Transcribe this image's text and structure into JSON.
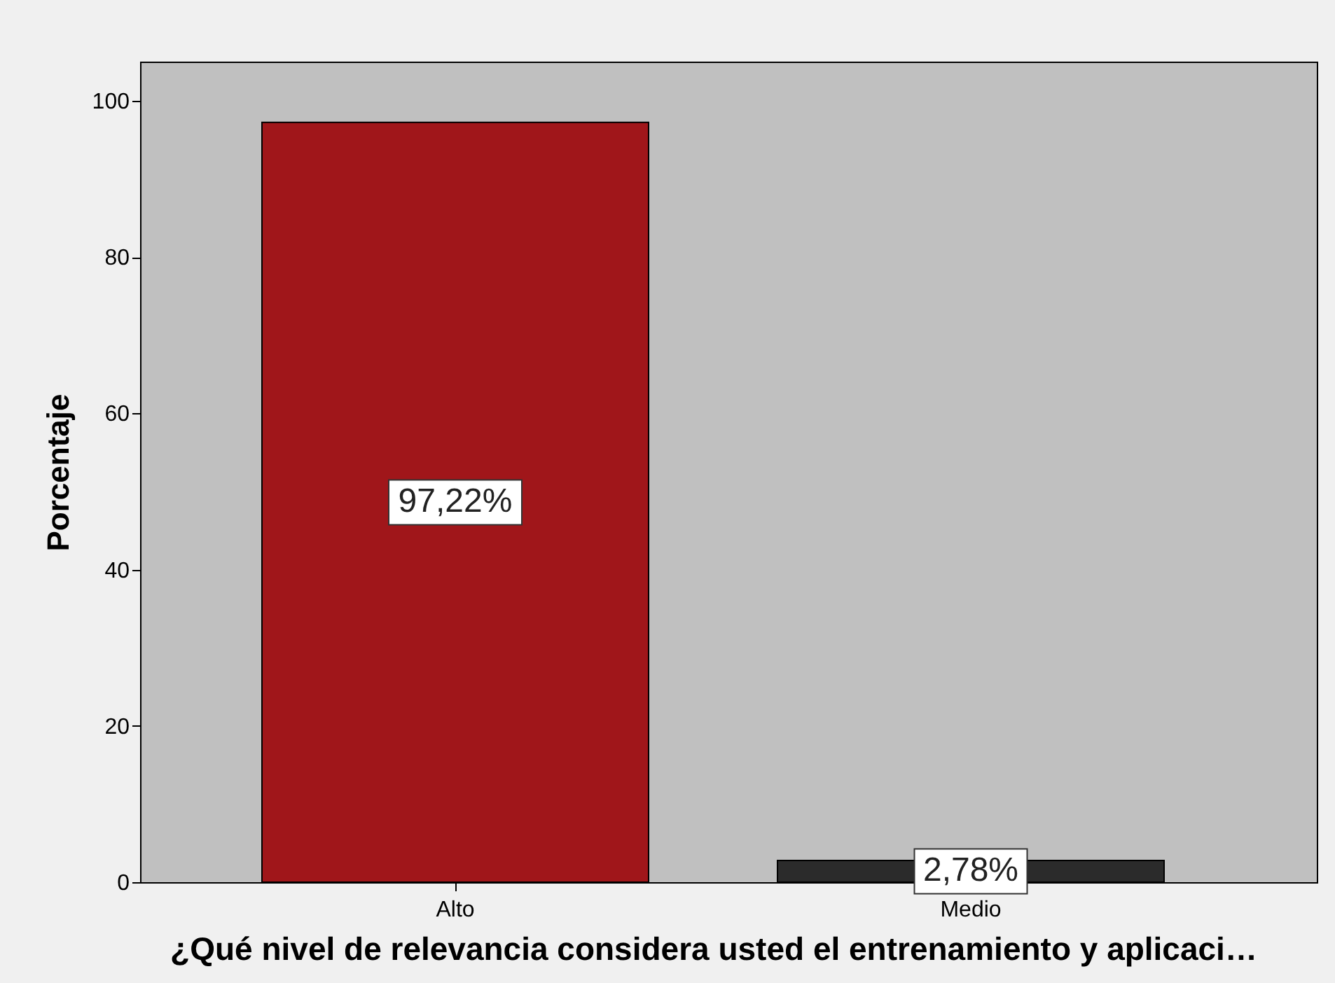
{
  "chart_data": {
    "type": "bar",
    "xlabel": "¿Qué nivel de relevancia considera usted el entrenamiento y aplicaci…",
    "ylabel": "Porcentaje",
    "categories": [
      "Alto",
      "Medio"
    ],
    "values": [
      97.22,
      2.78
    ],
    "colors": [
      "#a0161a",
      "#2b2b2b"
    ],
    "value_labels": [
      "97,22%",
      "2,78%"
    ],
    "ylim": [
      0,
      105
    ],
    "yticks": [
      0,
      20,
      40,
      60,
      80,
      100
    ],
    "grid": false
  }
}
